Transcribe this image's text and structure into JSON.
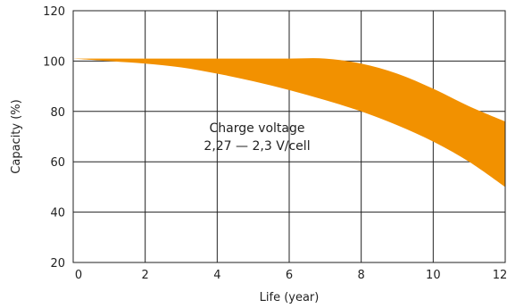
{
  "chart_data": {
    "type": "area",
    "title": "",
    "xlabel": "Life (year)",
    "ylabel": "Capacity (%)",
    "xlim": [
      0,
      12
    ],
    "ylim": [
      20,
      120
    ],
    "xticks": [
      0,
      2,
      4,
      6,
      8,
      10,
      12
    ],
    "yticks": [
      20,
      40,
      60,
      80,
      100,
      120
    ],
    "grid": true,
    "annotation": [
      "Charge voltage",
      "2,27 — 2,3 V/cell"
    ],
    "fill_color": "#F29100",
    "band": {
      "x": [
        0,
        1,
        2,
        3,
        4,
        5,
        6,
        7,
        8,
        9,
        10,
        11,
        12
      ],
      "upper": [
        101,
        101,
        101,
        101,
        101,
        101,
        101,
        101,
        99,
        95,
        89,
        82,
        76
      ],
      "lower": [
        101,
        100,
        99,
        97.5,
        95,
        92,
        88.5,
        84.5,
        80,
        74.5,
        68,
        60,
        50
      ]
    }
  }
}
